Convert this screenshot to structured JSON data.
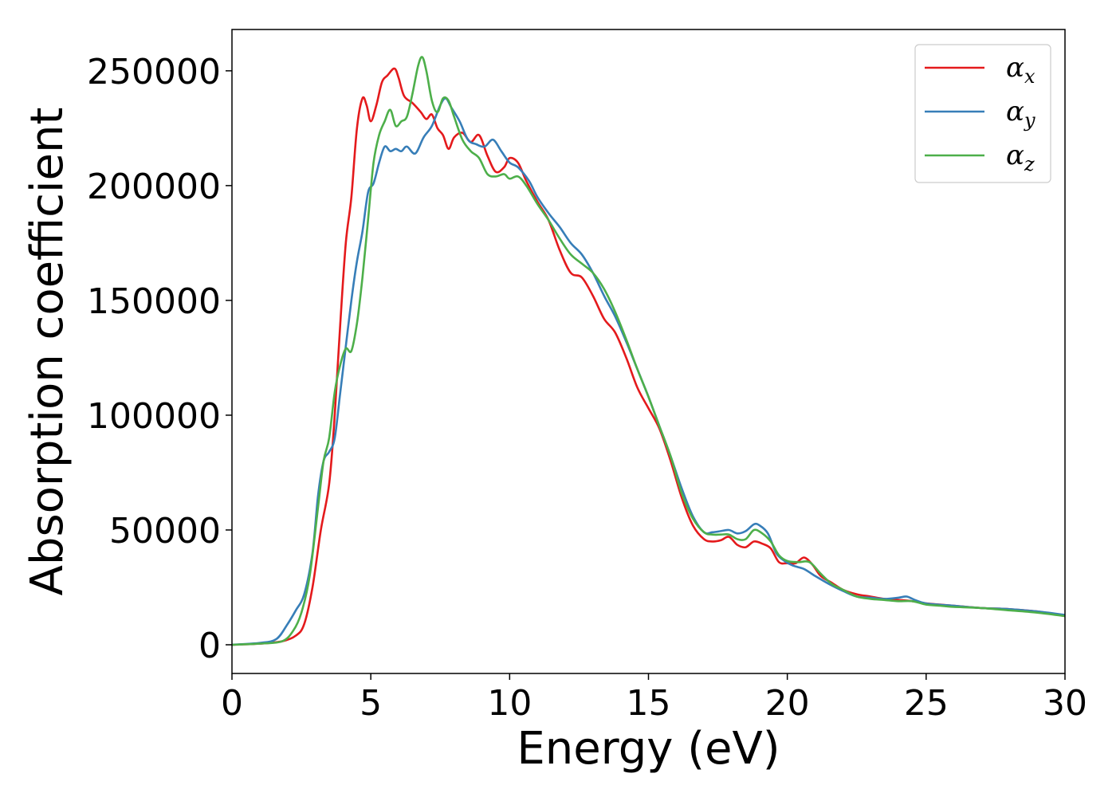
{
  "chart_data": {
    "type": "line",
    "title": "",
    "xlabel": "Energy (eV)",
    "ylabel": "Absorption coefficient",
    "xlim": [
      0,
      30
    ],
    "ylim": [
      -12500,
      268000
    ],
    "xticks": [
      "0",
      "5",
      "10",
      "15",
      "20",
      "25",
      "30"
    ],
    "xtick_values": [
      0,
      5,
      10,
      15,
      20,
      25,
      30
    ],
    "yticks": [
      "0",
      "50000",
      "100000",
      "150000",
      "200000",
      "250000"
    ],
    "ytick_values": [
      0,
      50000,
      100000,
      150000,
      200000,
      250000
    ],
    "grid": false,
    "legend_position": "top-right",
    "series": [
      {
        "name": "αx",
        "symbol": "α",
        "subscript": "x",
        "color": "#e41a1c",
        "x": [
          0,
          1,
          1.8,
          2.3,
          2.6,
          2.9,
          3.2,
          3.5,
          3.7,
          3.9,
          4.1,
          4.3,
          4.5,
          4.7,
          4.85,
          5.0,
          5.2,
          5.4,
          5.6,
          5.85,
          6.0,
          6.2,
          6.5,
          6.8,
          7.0,
          7.2,
          7.4,
          7.6,
          7.8,
          8.0,
          8.3,
          8.6,
          8.9,
          9.2,
          9.5,
          9.8,
          10.0,
          10.3,
          10.6,
          11.0,
          11.4,
          11.8,
          12.2,
          12.6,
          13.0,
          13.4,
          13.8,
          14.2,
          14.6,
          15.0,
          15.4,
          15.8,
          16.2,
          16.6,
          17.0,
          17.3,
          17.6,
          17.9,
          18.2,
          18.5,
          18.8,
          19.1,
          19.4,
          19.7,
          20.0,
          20.3,
          20.6,
          20.9,
          21.2,
          21.6,
          22.0,
          22.5,
          23.0,
          23.5,
          24.0,
          24.5,
          25.0,
          25.5,
          26.0,
          27.0,
          28.0,
          29.0,
          30.0
        ],
        "values": [
          0,
          500,
          1500,
          4000,
          9000,
          25000,
          50000,
          70000,
          100000,
          140000,
          175000,
          195000,
          225000,
          238000,
          235000,
          228000,
          235000,
          245000,
          248000,
          251000,
          247000,
          239000,
          236000,
          232000,
          229000,
          231000,
          225000,
          222000,
          216000,
          221000,
          223000,
          219000,
          222000,
          213000,
          206000,
          208000,
          212000,
          210000,
          202000,
          193000,
          185000,
          172000,
          162000,
          160000,
          152000,
          142000,
          136000,
          125000,
          112000,
          103000,
          94000,
          80000,
          64000,
          52000,
          46000,
          45000,
          45500,
          47000,
          43500,
          42500,
          45000,
          44000,
          42000,
          36000,
          35500,
          35500,
          38000,
          35000,
          30000,
          27000,
          24000,
          22000,
          21000,
          20000,
          19500,
          19000,
          18000,
          17500,
          17000,
          16000,
          15500,
          14500,
          12500
        ]
      },
      {
        "name": "αy",
        "symbol": "α",
        "subscript": "y",
        "color": "#377eb8",
        "x": [
          0,
          1,
          1.6,
          2.0,
          2.3,
          2.6,
          2.9,
          3.1,
          3.3,
          3.5,
          3.7,
          3.9,
          4.1,
          4.3,
          4.5,
          4.7,
          4.9,
          5.1,
          5.3,
          5.5,
          5.7,
          5.9,
          6.1,
          6.3,
          6.6,
          6.9,
          7.2,
          7.5,
          7.7,
          7.9,
          8.2,
          8.5,
          8.8,
          9.1,
          9.4,
          9.7,
          10.0,
          10.3,
          10.7,
          11.0,
          11.4,
          11.8,
          12.2,
          12.6,
          13.0,
          13.4,
          13.8,
          14.2,
          14.6,
          15.0,
          15.4,
          15.8,
          16.2,
          16.6,
          17.0,
          17.3,
          17.6,
          17.9,
          18.2,
          18.5,
          18.8,
          19.0,
          19.3,
          19.6,
          19.9,
          20.2,
          20.6,
          21.0,
          21.5,
          22.0,
          22.5,
          23.0,
          23.5,
          24.0,
          24.3,
          24.6,
          25.0,
          26.0,
          27.0,
          28.0,
          29.0,
          30.0
        ],
        "values": [
          0,
          800,
          2500,
          9000,
          15000,
          22000,
          40000,
          65000,
          80000,
          84000,
          90000,
          110000,
          130000,
          150000,
          167000,
          180000,
          197000,
          201000,
          210000,
          217000,
          215000,
          216000,
          215000,
          217000,
          214000,
          221000,
          226000,
          235000,
          238000,
          234000,
          228000,
          220000,
          218000,
          217000,
          220000,
          215000,
          210000,
          208000,
          202000,
          195000,
          188000,
          182000,
          175000,
          170000,
          162000,
          152000,
          143000,
          132000,
          120000,
          108000,
          95000,
          82000,
          68000,
          56000,
          49000,
          49000,
          49500,
          50000,
          48500,
          49500,
          52500,
          52000,
          48500,
          40000,
          36500,
          34500,
          33000,
          30000,
          26500,
          23500,
          21000,
          20500,
          20000,
          20500,
          21000,
          19500,
          18000,
          17000,
          16000,
          15500,
          14500,
          13000
        ]
      },
      {
        "name": "αz",
        "symbol": "α",
        "subscript": "z",
        "color": "#4daf4a",
        "x": [
          0,
          1,
          1.8,
          2.2,
          2.5,
          2.8,
          3.1,
          3.3,
          3.5,
          3.7,
          3.9,
          4.1,
          4.3,
          4.5,
          4.7,
          4.9,
          5.1,
          5.3,
          5.5,
          5.7,
          5.9,
          6.1,
          6.3,
          6.5,
          6.7,
          6.85,
          7.0,
          7.2,
          7.4,
          7.6,
          7.8,
          8.0,
          8.3,
          8.6,
          8.9,
          9.2,
          9.5,
          9.8,
          10.0,
          10.3,
          10.6,
          11.0,
          11.4,
          11.8,
          12.2,
          12.6,
          13.0,
          13.4,
          13.8,
          14.2,
          14.6,
          15.0,
          15.4,
          15.8,
          16.2,
          16.6,
          17.0,
          17.3,
          17.6,
          17.9,
          18.2,
          18.5,
          18.8,
          19.1,
          19.4,
          19.7,
          20.0,
          20.4,
          20.8,
          21.2,
          21.6,
          22.0,
          22.5,
          23.0,
          23.5,
          24.0,
          24.5,
          25.0,
          25.5,
          26.0,
          27.0,
          28.0,
          29.0,
          30.0
        ],
        "values": [
          0,
          500,
          1500,
          6000,
          14000,
          30000,
          60000,
          80000,
          90000,
          110000,
          122000,
          129000,
          128000,
          140000,
          160000,
          185000,
          210000,
          222000,
          228000,
          233000,
          226000,
          228000,
          230000,
          240000,
          252000,
          256000,
          250000,
          237000,
          232000,
          238000,
          237000,
          230000,
          220000,
          215000,
          212000,
          205000,
          204000,
          205000,
          203000,
          204000,
          200000,
          192000,
          185000,
          177000,
          170000,
          166000,
          162000,
          155000,
          145000,
          133000,
          120000,
          108000,
          95000,
          82000,
          66000,
          55000,
          49000,
          48000,
          48000,
          48000,
          46000,
          46000,
          50000,
          48500,
          45000,
          39000,
          36500,
          36000,
          36000,
          31000,
          26500,
          24000,
          21000,
          20000,
          19500,
          19000,
          19000,
          17500,
          17000,
          16500,
          16000,
          15000,
          14000,
          12500
        ]
      }
    ]
  }
}
